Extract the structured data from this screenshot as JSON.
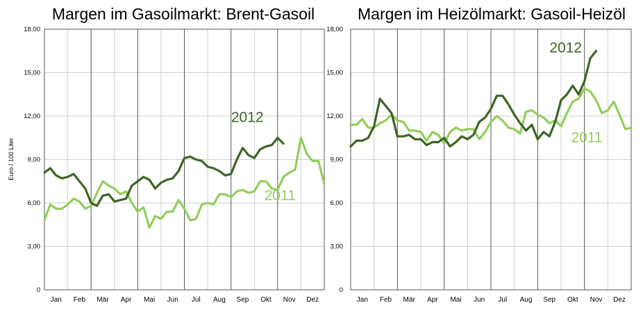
{
  "colors": {
    "s2012": "#3d6524",
    "s2011": "#93cd5c",
    "grid": "#cfcfcf",
    "monthline": "#555555"
  },
  "chart_data": [
    {
      "type": "line",
      "title": "Margen im Gasoilmarkt: Brent-Gasoil",
      "ylabel": "Euro / 100 Liter",
      "ylim": [
        0,
        18
      ],
      "yticks": [
        "0",
        "3,00",
        "6,00",
        "9,00",
        "12,00",
        "15,00",
        "18,00"
      ],
      "months": [
        "Jan",
        "Feb",
        "Mär",
        "Apr",
        "Mai",
        "Jun",
        "Jul",
        "Aug",
        "Sep",
        "Okt",
        "Nov",
        "Dez"
      ],
      "grid": true,
      "series": [
        {
          "name": "2012",
          "color_key": "s2012",
          "label_pos": [
            8.7,
            11.6
          ],
          "x": [
            0.0,
            0.25,
            0.5,
            0.75,
            1.0,
            1.25,
            1.5,
            1.75,
            2.0,
            2.25,
            2.5,
            2.75,
            3.0,
            3.25,
            3.5,
            3.75,
            4.0,
            4.25,
            4.5,
            4.75,
            5.0,
            5.25,
            5.5,
            5.75,
            6.0,
            6.25,
            6.5,
            6.75,
            7.0,
            7.25,
            7.5,
            7.75,
            8.0,
            8.25,
            8.5,
            8.75,
            9.0,
            9.25,
            9.5,
            9.75,
            10.0,
            10.25
          ],
          "y": [
            8.1,
            8.4,
            7.9,
            7.7,
            7.8,
            8.0,
            7.5,
            7.0,
            6.0,
            5.8,
            6.5,
            6.6,
            6.1,
            6.2,
            6.3,
            7.2,
            7.5,
            7.8,
            7.6,
            7.0,
            7.4,
            7.6,
            7.7,
            8.2,
            9.1,
            9.2,
            9.0,
            8.9,
            8.5,
            8.4,
            8.2,
            7.9,
            8.0,
            9.0,
            9.8,
            9.3,
            9.1,
            9.7,
            9.9,
            10.0,
            10.5,
            10.1
          ]
        },
        {
          "name": "2011",
          "color_key": "s2011",
          "label_pos": [
            10.1,
            6.2
          ],
          "x": [
            0.0,
            0.25,
            0.5,
            0.75,
            1.0,
            1.25,
            1.5,
            1.75,
            2.0,
            2.25,
            2.5,
            2.75,
            3.0,
            3.25,
            3.5,
            3.75,
            4.0,
            4.25,
            4.5,
            4.75,
            5.0,
            5.25,
            5.5,
            5.75,
            6.0,
            6.25,
            6.5,
            6.75,
            7.0,
            7.25,
            7.5,
            7.75,
            8.0,
            8.25,
            8.5,
            8.75,
            9.0,
            9.25,
            9.5,
            9.75,
            10.0,
            10.25,
            10.5,
            10.75,
            11.0,
            11.25,
            11.5,
            11.75,
            12.0
          ],
          "y": [
            4.8,
            5.9,
            5.6,
            5.6,
            5.9,
            6.3,
            6.1,
            5.6,
            5.8,
            6.7,
            7.5,
            7.2,
            7.0,
            6.6,
            6.8,
            6.0,
            5.4,
            5.7,
            4.3,
            5.1,
            4.9,
            5.4,
            5.4,
            6.2,
            5.6,
            4.8,
            4.9,
            5.9,
            6.0,
            5.9,
            6.6,
            6.6,
            6.4,
            6.8,
            6.9,
            6.7,
            6.8,
            7.5,
            7.5,
            7.0,
            6.9,
            7.8,
            8.1,
            8.3,
            10.5,
            9.4,
            8.9,
            8.9,
            7.3
          ]
        }
      ]
    },
    {
      "type": "line",
      "title": "Margen im Heizölmarkt: Gasoil-Heizöl",
      "ylabel": "",
      "ylim": [
        0,
        18
      ],
      "yticks": [
        "0",
        "3,00",
        "6,00",
        "9,00",
        "12,00",
        "15,00",
        "18,00"
      ],
      "months": [
        "Jan",
        "Feb",
        "Mär",
        "Apr",
        "Mai",
        "Jun",
        "Jul",
        "Aug",
        "Sep",
        "Okt",
        "Nov",
        "Dez"
      ],
      "grid": true,
      "series": [
        {
          "name": "2012",
          "color_key": "s2012",
          "label_pos": [
            9.2,
            16.4
          ],
          "x": [
            0.0,
            0.25,
            0.5,
            0.75,
            1.0,
            1.25,
            1.5,
            1.75,
            2.0,
            2.25,
            2.5,
            2.75,
            3.0,
            3.25,
            3.5,
            3.75,
            4.0,
            4.25,
            4.5,
            4.75,
            5.0,
            5.25,
            5.5,
            5.75,
            6.0,
            6.25,
            6.5,
            6.75,
            7.0,
            7.25,
            7.5,
            7.75,
            8.0,
            8.25,
            8.5,
            8.75,
            9.0,
            9.25,
            9.5,
            9.75,
            10.0,
            10.25,
            10.5
          ],
          "y": [
            9.9,
            10.3,
            10.3,
            10.5,
            11.3,
            13.2,
            12.7,
            12.2,
            10.6,
            10.6,
            10.7,
            10.4,
            10.4,
            10.0,
            10.2,
            10.2,
            10.5,
            9.9,
            10.2,
            10.6,
            10.4,
            10.7,
            11.6,
            11.9,
            12.5,
            13.4,
            13.4,
            12.8,
            12.1,
            11.5,
            11.0,
            11.4,
            10.4,
            10.9,
            10.6,
            11.6,
            13.1,
            13.5,
            14.1,
            13.5,
            14.4,
            16.0,
            16.5
          ]
        },
        {
          "name": "2011",
          "color_key": "s2011",
          "label_pos": [
            10.1,
            10.2
          ],
          "x": [
            0.0,
            0.25,
            0.5,
            0.75,
            1.0,
            1.25,
            1.5,
            1.75,
            2.0,
            2.25,
            2.5,
            2.75,
            3.0,
            3.25,
            3.5,
            3.75,
            4.0,
            4.25,
            4.5,
            4.75,
            5.0,
            5.25,
            5.5,
            5.75,
            6.0,
            6.25,
            6.5,
            6.75,
            7.0,
            7.25,
            7.5,
            7.75,
            8.0,
            8.25,
            8.5,
            8.75,
            9.0,
            9.25,
            9.5,
            9.75,
            10.0,
            10.25,
            10.5,
            10.75,
            11.0,
            11.25,
            11.5,
            11.75,
            12.0
          ],
          "y": [
            11.4,
            11.4,
            11.8,
            11.2,
            11.2,
            11.5,
            11.7,
            12.1,
            11.7,
            11.6,
            11.0,
            11.0,
            10.9,
            10.3,
            10.9,
            10.7,
            10.1,
            10.9,
            11.2,
            11.0,
            11.1,
            11.1,
            10.4,
            10.9,
            11.6,
            12.0,
            11.7,
            11.2,
            11.1,
            10.8,
            12.3,
            12.4,
            12.1,
            11.9,
            11.5,
            11.7,
            11.3,
            12.2,
            13.0,
            13.2,
            13.9,
            13.7,
            13.1,
            12.2,
            12.4,
            13.0,
            12.1,
            11.1,
            11.2
          ]
        }
      ]
    }
  ]
}
